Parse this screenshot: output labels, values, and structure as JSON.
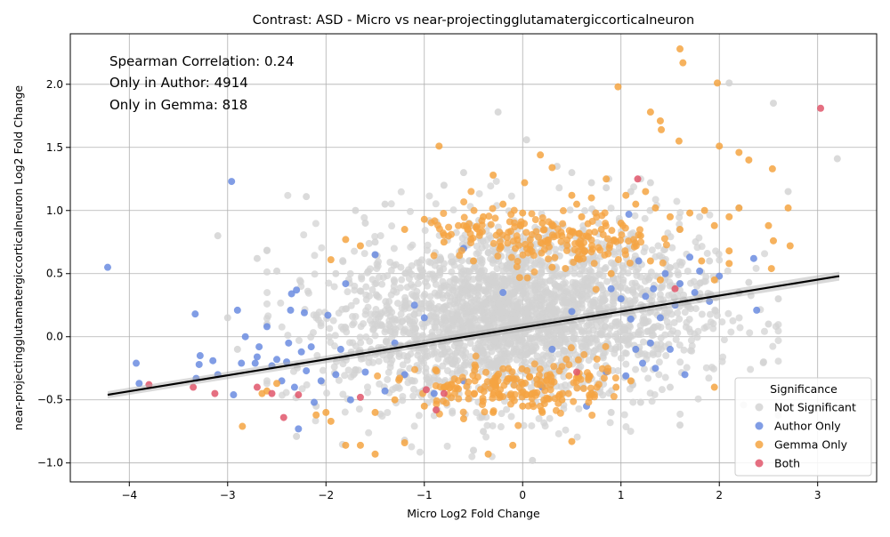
{
  "chart_data": {
    "type": "scatter",
    "title": "Contrast: ASD - Micro vs near-projectingglutamatergiccorticalneuron",
    "xlabel": "Micro Log2 Fold Change",
    "ylabel": "near-projectingglutamatergiccorticalneuron Log2 Fold Change",
    "xlim": [
      -4.6,
      3.6
    ],
    "ylim": [
      -1.15,
      2.4
    ],
    "x_ticks": [
      -4,
      -3,
      -2,
      -1,
      0,
      1,
      2,
      3
    ],
    "y_ticks": [
      -1.0,
      -0.5,
      0.0,
      0.5,
      1.0,
      1.5,
      2.0
    ],
    "x_tick_labels": [
      "−4",
      "−3",
      "−2",
      "−1",
      "0",
      "1",
      "2",
      "3"
    ],
    "y_tick_labels": [
      "−1.0",
      "−0.5",
      "0.0",
      "0.5",
      "1.0",
      "1.5",
      "2.0"
    ],
    "grid": true,
    "annotations": [
      "Spearman Correlation: 0.24",
      "Only in Author: 4914",
      "Only in Gemma: 818"
    ],
    "legend": {
      "title": "Significance",
      "placement": "lower-right",
      "entries": [
        "Not Significant",
        "Author Only",
        "Gemma Only",
        "Both"
      ]
    },
    "regression_line": {
      "x": [
        -4.22,
        3.22
      ],
      "y": [
        -0.46,
        0.48
      ],
      "color": "#000000"
    },
    "series": [
      {
        "name": "Not Significant",
        "color": "#d3d3d3",
        "points": [
          [
            -3.1,
            0.8
          ],
          [
            -2.7,
            0.62
          ],
          [
            -2.2,
            1.11
          ],
          [
            -0.95,
            0.92
          ],
          [
            -0.25,
            1.78
          ],
          [
            0.04,
            1.56
          ],
          [
            0.5,
            1.3
          ],
          [
            0.7,
            1.22
          ],
          [
            0.85,
            1.18
          ],
          [
            1.1,
            1.15
          ],
          [
            2.1,
            2.01
          ],
          [
            2.55,
            1.85
          ],
          [
            3.2,
            1.41
          ],
          [
            2.7,
            1.15
          ],
          [
            2.2,
            1.02
          ],
          [
            2.6,
            0.3
          ],
          [
            2.5,
            0.1
          ],
          [
            2.45,
            -0.2
          ],
          [
            1.6,
            -0.7
          ],
          [
            0.1,
            -0.98
          ],
          [
            -0.5,
            -0.9
          ],
          [
            -1.2,
            -0.82
          ],
          [
            -2.3,
            -0.79
          ],
          [
            -2.1,
            -0.55
          ],
          [
            -1.7,
            1.0
          ],
          [
            -1.4,
            1.05
          ],
          [
            -1.6,
            0.9
          ],
          [
            -0.8,
            1.2
          ],
          [
            1.3,
            1.22
          ],
          [
            1.8,
            0.95
          ],
          [
            1.9,
            0.6
          ],
          [
            1.5,
            -0.4
          ],
          [
            2.2,
            0.35
          ],
          [
            2.3,
            0.43
          ],
          [
            -2.9,
            -0.1
          ],
          [
            -2.6,
            0.1
          ],
          [
            -2.5,
            0.52
          ],
          [
            -3.0,
            0.15
          ],
          [
            -0.4,
            -0.75
          ],
          [
            0.9,
            -0.6
          ],
          [
            1.2,
            -0.52
          ],
          [
            -1.9,
            0.5
          ],
          [
            -1.5,
            0.75
          ],
          [
            0.35,
            1.35
          ],
          [
            -0.6,
            1.3
          ]
        ],
        "cloud_clusters": [
          {
            "cx": -0.2,
            "cy": 0.15,
            "sx": 0.55,
            "sy": 0.3,
            "n": 900
          },
          {
            "cx": 0.1,
            "cy": 0.2,
            "sx": 0.9,
            "sy": 0.38,
            "n": 900
          },
          {
            "cx": -1.2,
            "cy": 0.05,
            "sx": 0.6,
            "sy": 0.3,
            "n": 350
          },
          {
            "cx": 1.0,
            "cy": 0.3,
            "sx": 0.55,
            "sy": 0.33,
            "n": 350
          }
        ]
      },
      {
        "name": "Author Only",
        "color": "#6b8ce0",
        "points": [
          [
            -4.22,
            0.55
          ],
          [
            -3.93,
            -0.21
          ],
          [
            -3.9,
            -0.37
          ],
          [
            -3.33,
            0.18
          ],
          [
            -3.32,
            -0.33
          ],
          [
            -3.29,
            -0.22
          ],
          [
            -3.28,
            -0.15
          ],
          [
            -3.15,
            -0.19
          ],
          [
            -3.1,
            -0.3
          ],
          [
            -2.96,
            1.23
          ],
          [
            -2.94,
            -0.46
          ],
          [
            -2.9,
            0.21
          ],
          [
            -2.86,
            -0.21
          ],
          [
            -2.82,
            0.0
          ],
          [
            -2.72,
            -0.21
          ],
          [
            -2.7,
            -0.16
          ],
          [
            -2.68,
            -0.08
          ],
          [
            -2.6,
            0.08
          ],
          [
            -2.55,
            -0.23
          ],
          [
            -2.5,
            -0.18
          ],
          [
            -2.45,
            -0.35
          ],
          [
            -2.4,
            -0.2
          ],
          [
            -2.38,
            -0.05
          ],
          [
            -2.36,
            0.21
          ],
          [
            -2.35,
            0.34
          ],
          [
            -2.32,
            -0.4
          ],
          [
            -2.3,
            0.37
          ],
          [
            -2.28,
            -0.73
          ],
          [
            -2.25,
            -0.12
          ],
          [
            -2.22,
            0.19
          ],
          [
            -2.2,
            -0.27
          ],
          [
            -2.15,
            -0.08
          ],
          [
            -2.12,
            -0.52
          ],
          [
            -2.05,
            -0.35
          ],
          [
            -1.98,
            0.17
          ],
          [
            -1.9,
            -0.3
          ],
          [
            -1.85,
            -0.1
          ],
          [
            -1.8,
            0.42
          ],
          [
            -1.75,
            -0.5
          ],
          [
            -1.6,
            -0.28
          ],
          [
            -1.5,
            0.65
          ],
          [
            -1.4,
            -0.43
          ],
          [
            -1.3,
            -0.05
          ],
          [
            -1.2,
            -0.3
          ],
          [
            -1.1,
            0.25
          ],
          [
            -0.9,
            -0.45
          ],
          [
            -0.6,
            -0.35
          ],
          [
            0.2,
            -0.4
          ],
          [
            0.65,
            -0.55
          ],
          [
            0.85,
            -0.28
          ],
          [
            0.9,
            0.38
          ],
          [
            1.0,
            0.3
          ],
          [
            1.05,
            -0.31
          ],
          [
            1.08,
            0.97
          ],
          [
            1.1,
            0.14
          ],
          [
            1.15,
            -0.1
          ],
          [
            1.18,
            0.6
          ],
          [
            1.22,
            -0.21
          ],
          [
            1.25,
            0.32
          ],
          [
            1.3,
            -0.05
          ],
          [
            1.33,
            0.38
          ],
          [
            1.35,
            -0.25
          ],
          [
            1.4,
            0.15
          ],
          [
            1.45,
            0.5
          ],
          [
            1.5,
            -0.1
          ],
          [
            1.55,
            0.25
          ],
          [
            1.6,
            0.42
          ],
          [
            1.65,
            -0.3
          ],
          [
            1.7,
            0.63
          ],
          [
            1.75,
            0.35
          ],
          [
            1.8,
            0.52
          ],
          [
            1.9,
            0.28
          ],
          [
            2.0,
            0.48
          ],
          [
            2.35,
            0.62
          ],
          [
            2.38,
            0.21
          ],
          [
            -0.6,
            0.7
          ],
          [
            -0.2,
            0.35
          ],
          [
            0.5,
            0.2
          ],
          [
            -1.0,
            0.15
          ],
          [
            0.3,
            -0.1
          ]
        ]
      },
      {
        "name": "Gemma Only",
        "color": "#f5a442",
        "points": [
          [
            1.6,
            2.28
          ],
          [
            1.63,
            2.17
          ],
          [
            0.97,
            1.98
          ],
          [
            1.98,
            2.01
          ],
          [
            1.3,
            1.78
          ],
          [
            1.4,
            1.71
          ],
          [
            1.41,
            1.64
          ],
          [
            1.59,
            1.55
          ],
          [
            2.0,
            1.51
          ],
          [
            2.2,
            1.46
          ],
          [
            2.3,
            1.4
          ],
          [
            2.54,
            1.33
          ],
          [
            -0.85,
            1.51
          ],
          [
            0.18,
            1.44
          ],
          [
            0.3,
            1.34
          ],
          [
            0.02,
            1.22
          ],
          [
            -0.3,
            1.28
          ],
          [
            0.5,
            1.12
          ],
          [
            0.55,
            1.05
          ],
          [
            0.7,
            1.1
          ],
          [
            0.85,
            1.25
          ],
          [
            1.05,
            1.12
          ],
          [
            1.15,
            1.05
          ],
          [
            1.25,
            1.15
          ],
          [
            1.35,
            1.02
          ],
          [
            1.5,
            0.95
          ],
          [
            1.7,
            0.98
          ],
          [
            1.85,
            1.0
          ],
          [
            1.95,
            0.88
          ],
          [
            2.1,
            0.95
          ],
          [
            2.2,
            1.02
          ],
          [
            2.5,
            0.88
          ],
          [
            2.55,
            0.76
          ],
          [
            2.7,
            1.02
          ],
          [
            2.72,
            0.72
          ],
          [
            2.1,
            0.68
          ],
          [
            2.1,
            0.58
          ],
          [
            2.53,
            0.54
          ],
          [
            1.95,
            0.45
          ],
          [
            1.82,
            0.6
          ],
          [
            1.6,
            0.85
          ],
          [
            1.2,
            0.8
          ],
          [
            1.0,
            0.9
          ],
          [
            0.8,
            0.85
          ],
          [
            0.6,
            0.95
          ],
          [
            0.4,
            0.8
          ],
          [
            0.2,
            0.9
          ],
          [
            0.0,
            0.98
          ],
          [
            -0.2,
            1.05
          ],
          [
            -0.4,
            0.95
          ],
          [
            -0.6,
            0.88
          ],
          [
            -0.8,
            0.75
          ],
          [
            -1.0,
            0.93
          ],
          [
            -1.2,
            0.85
          ],
          [
            -1.65,
            0.72
          ],
          [
            -1.8,
            0.77
          ],
          [
            -1.95,
            0.61
          ],
          [
            -2.0,
            -0.6
          ],
          [
            -2.1,
            -0.62
          ],
          [
            -1.95,
            -0.67
          ],
          [
            -1.8,
            -0.86
          ],
          [
            -1.65,
            -0.86
          ],
          [
            -1.5,
            -0.93
          ],
          [
            -1.2,
            -0.84
          ],
          [
            -0.35,
            -0.93
          ],
          [
            -0.1,
            -0.86
          ],
          [
            0.5,
            -0.83
          ],
          [
            -2.5,
            -0.37
          ],
          [
            -2.6,
            -0.43
          ],
          [
            -2.65,
            -0.45
          ],
          [
            -2.85,
            -0.71
          ],
          [
            -1.0,
            -0.55
          ],
          [
            -0.6,
            -0.65
          ],
          [
            -0.3,
            -0.6
          ],
          [
            0.2,
            -0.6
          ],
          [
            0.4,
            -0.5
          ],
          [
            0.7,
            -0.45
          ],
          [
            0.95,
            -0.4
          ],
          [
            1.1,
            -0.35
          ],
          [
            1.95,
            -0.4
          ],
          [
            -1.5,
            -0.6
          ],
          [
            -1.3,
            -0.5
          ],
          [
            -0.8,
            -0.4
          ],
          [
            0.0,
            -0.55
          ],
          [
            0.1,
            -0.45
          ],
          [
            -0.5,
            0.6
          ],
          [
            0.3,
            0.55
          ],
          [
            0.9,
            0.5
          ],
          [
            1.3,
            0.6
          ],
          [
            1.4,
            0.45
          ]
        ],
        "cloud_clusters": [
          {
            "cx": -0.3,
            "cy": -0.4,
            "sx": 0.4,
            "sy": 0.1,
            "n": 140
          },
          {
            "cx": 0.5,
            "cy": 0.75,
            "sx": 0.4,
            "sy": 0.12,
            "n": 140
          },
          {
            "cx": 0.6,
            "cy": -0.35,
            "sx": 0.3,
            "sy": 0.1,
            "n": 50
          },
          {
            "cx": -0.4,
            "cy": 0.82,
            "sx": 0.3,
            "sy": 0.1,
            "n": 50
          }
        ]
      },
      {
        "name": "Both",
        "color": "#e0566b",
        "points": [
          [
            3.03,
            1.81
          ],
          [
            1.17,
            1.25
          ],
          [
            1.55,
            0.38
          ],
          [
            -3.8,
            -0.38
          ],
          [
            -3.35,
            -0.4
          ],
          [
            -3.13,
            -0.45
          ],
          [
            -2.7,
            -0.4
          ],
          [
            -2.55,
            -0.45
          ],
          [
            -2.43,
            -0.64
          ],
          [
            -2.28,
            -0.46
          ],
          [
            -1.65,
            -0.48
          ],
          [
            -0.98,
            -0.42
          ],
          [
            -0.88,
            -0.58
          ],
          [
            -0.8,
            -0.45
          ],
          [
            0.55,
            -0.28
          ]
        ]
      }
    ]
  }
}
